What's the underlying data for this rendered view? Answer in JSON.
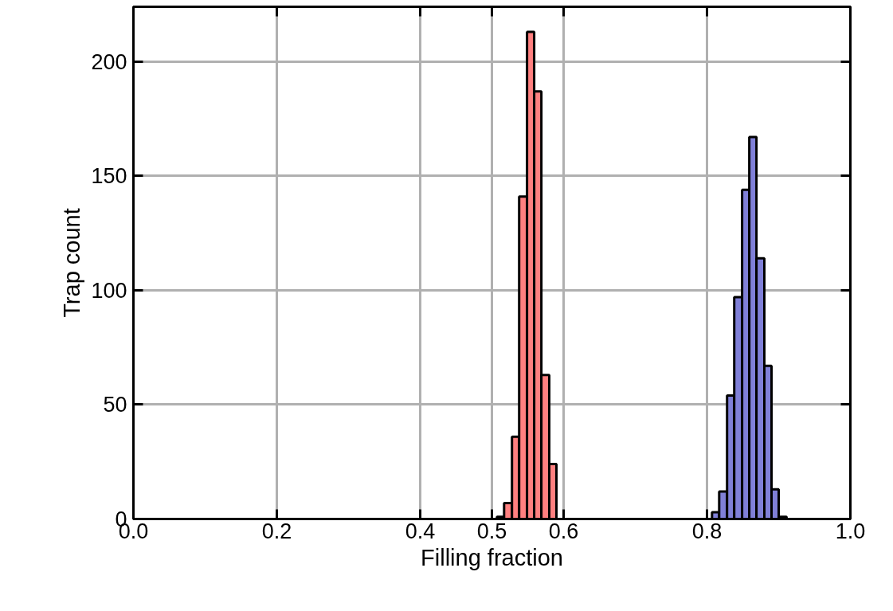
{
  "chart_data": {
    "type": "histogram",
    "xlabel": "Filling fraction",
    "ylabel": "Trap count",
    "bins": [
      0.507,
      0.517,
      0.528,
      0.538,
      0.549,
      0.559,
      0.569,
      0.58,
      0.59,
      0.807,
      0.817,
      0.828,
      0.838,
      0.849,
      0.859,
      0.869,
      0.88,
      0.89,
      0.9,
      0.911
    ],
    "values": [
      1,
      7,
      36,
      141,
      213,
      187,
      63,
      24,
      0,
      3,
      12,
      54,
      97,
      144,
      167,
      114,
      67,
      13,
      1
    ],
    "colors": [
      "#ff8080",
      "#ff8080",
      "#ff8080",
      "#ff8080",
      "#ff8080",
      "#ff8080",
      "#ff8080",
      "#ff8080",
      "#ff8080",
      "#8080d8",
      "#8080d8",
      "#8080d8",
      "#8080d8",
      "#8080d8",
      "#8080d8",
      "#8080d8",
      "#8080d8",
      "#8080d8",
      "#8080d8"
    ],
    "xlim": [
      0,
      1
    ],
    "ylim": [
      0,
      224
    ],
    "xticks": [
      {
        "value": 0,
        "label": "0.0"
      },
      0.2,
      0.4,
      0.5,
      0.6,
      0.8,
      {
        "value": 1,
        "label": "1.0"
      }
    ],
    "yticks": [
      0,
      50,
      100,
      150,
      200
    ],
    "grid": true
  }
}
